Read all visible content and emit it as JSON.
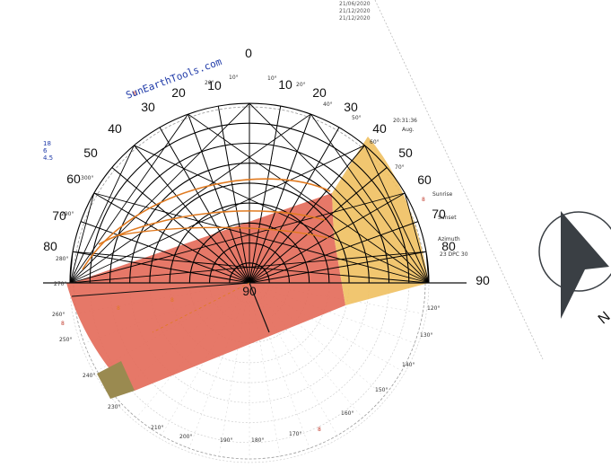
{
  "watermark": "SunEarthTools.com",
  "north_label": "N",
  "center_label": "90",
  "top_label": "0",
  "right_label": "90",
  "left_ticks": [
    "20",
    "30",
    "40",
    "50",
    "60",
    "70",
    "80"
  ],
  "right_ticks": [
    "10",
    "20",
    "30",
    "40",
    "50",
    "60",
    "70",
    "80"
  ],
  "top_ticks": [
    "10",
    "10"
  ],
  "date_legend": [
    "21/06/2020",
    "21/12/2020",
    "21/12/2020"
  ],
  "side_marks": [
    "18",
    "6",
    "4.5"
  ],
  "colors": {
    "shadow_area": "#e46d5b",
    "sun_area": "#f0c060",
    "dark_patch": "#9a8a50",
    "sun_path": "#e07a20",
    "grid": "#000000",
    "compass": "#3a3f44",
    "brand": "#1f3aa8"
  },
  "icons": {
    "compass": "north-compass-icon"
  }
}
